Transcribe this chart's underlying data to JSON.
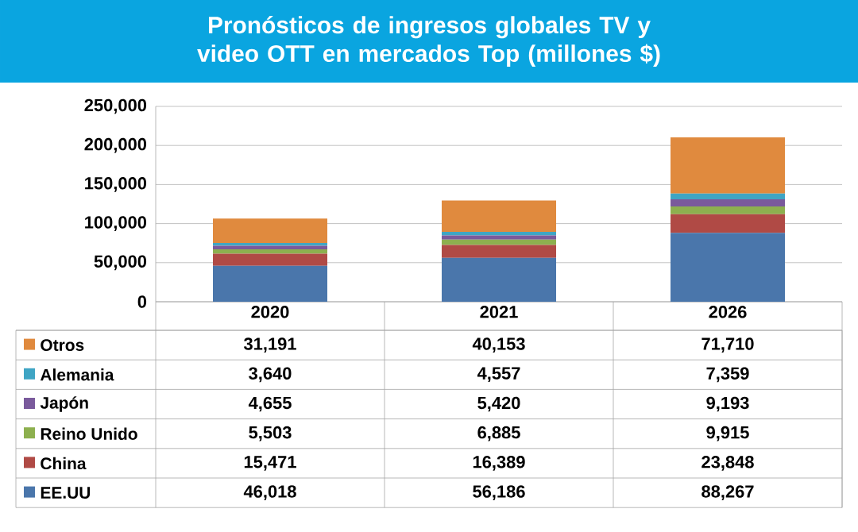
{
  "chart_data": {
    "type": "bar",
    "stacked": true,
    "title": "Pronósticos de ingresos globales TV y video OTT en mercados Top (millones $)",
    "categories": [
      "2020",
      "2021",
      "2026"
    ],
    "series": [
      {
        "name": "EE.UU",
        "color": "#4a76ab",
        "values": [
          46018,
          56186,
          88267
        ],
        "value_labels": [
          "46,018",
          "56,186",
          "88,267"
        ]
      },
      {
        "name": "China",
        "color": "#b04a45",
        "values": [
          15471,
          16389,
          23848
        ],
        "value_labels": [
          "15,471",
          "16,389",
          "23,848"
        ]
      },
      {
        "name": "Reino Unido",
        "color": "#8db04f",
        "values": [
          5503,
          6885,
          9915
        ],
        "value_labels": [
          "5,503",
          "6,885",
          "9,915"
        ]
      },
      {
        "name": "Japón",
        "color": "#7a5a9c",
        "values": [
          4655,
          5420,
          9193
        ],
        "value_labels": [
          "4,655",
          "5,420",
          "9,193"
        ]
      },
      {
        "name": "Alemania",
        "color": "#3fa5c4",
        "values": [
          3640,
          4557,
          7359
        ],
        "value_labels": [
          "3,640",
          "4,557",
          "7,359"
        ]
      },
      {
        "name": "Otros",
        "color": "#e08a3e",
        "values": [
          31191,
          40153,
          71710
        ],
        "value_labels": [
          "31,191",
          "40,153",
          "71,710"
        ]
      }
    ],
    "ylim": [
      0,
      250000
    ],
    "yticks": [
      0,
      {
        "value": 50000,
        "label": "50,000"
      },
      {
        "value": 100000,
        "label": "100,000"
      },
      {
        "value": 150000,
        "label": "150,000"
      },
      {
        "value": 200000,
        "label": "200,000"
      },
      {
        "value": 250000,
        "label": "250,000"
      }
    ],
    "grid": "y",
    "legend": "bottom"
  }
}
